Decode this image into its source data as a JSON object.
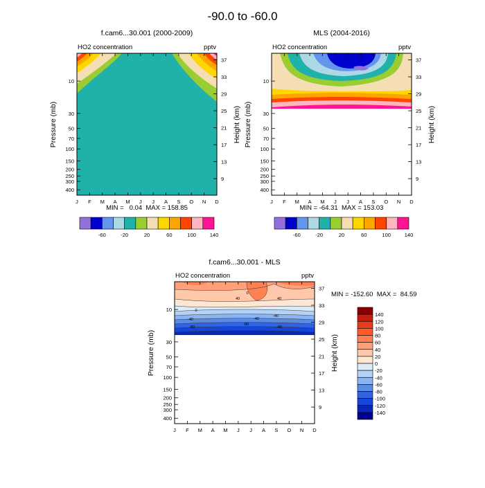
{
  "figure": {
    "title": "-90.0 to -60.0"
  },
  "chart_data": [
    {
      "type": "heatmap",
      "title": "f.cam6...30.001 (2000-2009)",
      "inner_left_label": "HO2 concentration",
      "inner_right_label": "pptv",
      "xlabel": "",
      "ylabel": "Pressure (mb)",
      "right_ylabel": "Height (km)",
      "x_ticks": [
        "J",
        "F",
        "M",
        "A",
        "M",
        "J",
        "J",
        "A",
        "S",
        "O",
        "N",
        "D"
      ],
      "y_ticks_left": [
        10,
        30,
        50,
        70,
        100,
        150,
        200,
        250,
        300,
        400
      ],
      "y_ticks_right": [
        37,
        33,
        29,
        25,
        21,
        17,
        13,
        9
      ],
      "ylim": [
        500,
        3
      ],
      "y_scale": "log",
      "stats": "MIN =   0.04  MAX = 158.85",
      "description": "Mostly uniform teal (20-40 pptv) field; high values (up to ~160) in upper corners near Jan and Dec above ~10 mb.",
      "colorbar": {
        "ticks": [
          -60,
          -20,
          20,
          60,
          100,
          140
        ],
        "levels": [
          -80,
          -60,
          -40,
          -20,
          0,
          20,
          40,
          60,
          80,
          100,
          120,
          140
        ],
        "colors": [
          "#9370db",
          "#0000cd",
          "#6495ed",
          "#add8e6",
          "#20b2aa",
          "#9acd32",
          "#f5deb3",
          "#ffd700",
          "#ffa500",
          "#ff4500",
          "#ffb6c1",
          "#ff1493"
        ]
      }
    },
    {
      "type": "heatmap",
      "title": "MLS (2004-2016)",
      "inner_left_label": "HO2 concentration",
      "inner_right_label": "pptv",
      "xlabel": "",
      "ylabel": "Pressure (mb)",
      "right_ylabel": "Height (km)",
      "x_ticks": [
        "J",
        "F",
        "M",
        "A",
        "M",
        "J",
        "J",
        "A",
        "S",
        "O",
        "N",
        "D"
      ],
      "y_ticks_left": [
        10,
        30,
        50,
        70,
        100,
        150,
        200,
        250,
        300,
        400
      ],
      "y_ticks_right": [
        37,
        33,
        29,
        25,
        21,
        17,
        13,
        9
      ],
      "ylim": [
        500,
        3
      ],
      "y_scale": "log",
      "stats": "MIN = -64.31  MAX = 153.03",
      "description": "Data only above ~22 mb; minimum (dark blue, below -60) centered near June-July at ~4 mb, increasing outward to high values (>100) at lower boundary.",
      "colorbar": {
        "ticks": [
          -60,
          -20,
          20,
          60,
          100,
          140
        ],
        "levels": [
          -80,
          -60,
          -40,
          -20,
          0,
          20,
          40,
          60,
          80,
          100,
          120,
          140
        ],
        "colors": [
          "#9370db",
          "#0000cd",
          "#6495ed",
          "#add8e6",
          "#20b2aa",
          "#9acd32",
          "#f5deb3",
          "#ffd700",
          "#ffa500",
          "#ff4500",
          "#ffb6c1",
          "#ff1493"
        ]
      }
    },
    {
      "type": "heatmap",
      "title": "f.cam6...30.001 - MLS",
      "inner_left_label": "HO2 concentration",
      "inner_right_label": "pptv",
      "xlabel": "",
      "ylabel": "Pressure (mb)",
      "right_ylabel": "Height (km)",
      "x_ticks": [
        "J",
        "F",
        "M",
        "A",
        "M",
        "J",
        "J",
        "A",
        "S",
        "O",
        "N",
        "D"
      ],
      "y_ticks_left": [
        10,
        30,
        50,
        70,
        100,
        150,
        200,
        250,
        300,
        400
      ],
      "y_ticks_right": [
        37,
        33,
        29,
        25,
        21,
        17,
        13,
        9
      ],
      "ylim": [
        500,
        3
      ],
      "y_scale": "log",
      "stats": "MIN = -152.60  MAX =  84.59",
      "contour_labels": [
        "40",
        "40",
        "0",
        "0",
        "-40",
        "-40",
        "-80",
        "-80",
        "-40",
        "-40"
      ],
      "description": "Difference field: positive (salmon/orange, up to ~80) at top, decreasing through 0 near 8 mb to strongly negative (dark blue, < -140) near 20 mb; blank below.",
      "colorbar": {
        "ticks": [
          140,
          120,
          100,
          80,
          60,
          40,
          20,
          0,
          -20,
          -40,
          -60,
          -80,
          -100,
          -120,
          -140
        ],
        "colors": [
          "#8b0000",
          "#c81e0f",
          "#e63c1e",
          "#ff5a28",
          "#ff8050",
          "#ffa07a",
          "#ffc8aa",
          "#fde6d2",
          "#dcebfa",
          "#b4d2f5",
          "#8cb4f0",
          "#5a8ce6",
          "#3264e1",
          "#1446dc",
          "#0a28b4",
          "#00008b"
        ]
      }
    }
  ]
}
